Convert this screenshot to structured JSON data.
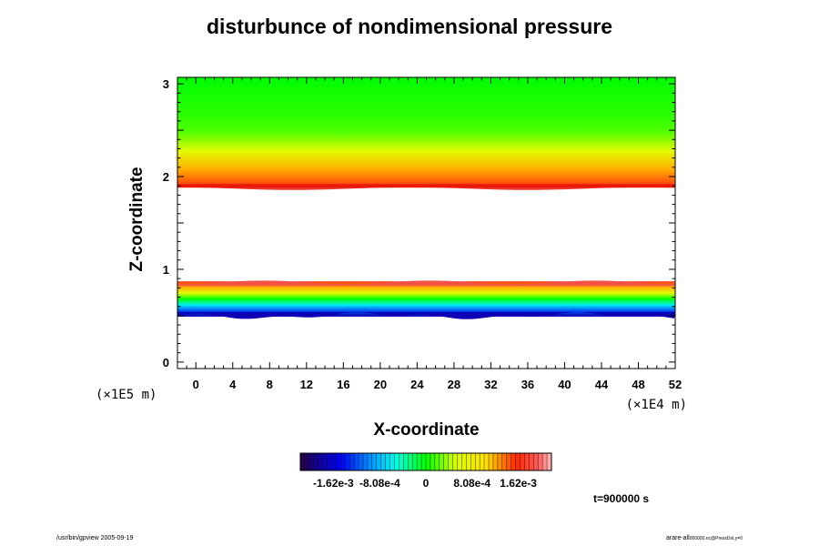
{
  "chart_data": {
    "type": "heatmap",
    "title": "disturbunce of nondimensional pressure",
    "xlabel": "X-coordinate",
    "ylabel": "Z-coordinate",
    "x_unit": "(×1E4 m)",
    "y_unit": "(×1E5 m)",
    "xlim": [
      -2,
      52
    ],
    "ylim": [
      -0.07,
      3.07
    ],
    "x_ticks": [
      0,
      4,
      8,
      12,
      16,
      20,
      24,
      28,
      32,
      36,
      40,
      44,
      48,
      52
    ],
    "x_tick_labels": [
      "0",
      "4",
      "8",
      "12",
      "16",
      "20",
      "24",
      "28",
      "32",
      "36",
      "40",
      "44",
      "48",
      "52"
    ],
    "y_ticks": [
      0,
      1,
      2,
      3
    ],
    "y_tick_labels": [
      "0",
      "1",
      "2",
      "3"
    ],
    "colorbar": {
      "min": -0.0022,
      "max": 0.0022,
      "ticks": [
        -0.00162,
        -0.000808,
        0,
        0.000808,
        0.00162
      ],
      "tick_labels": [
        "-1.62e-3",
        "-8.08e-4",
        "0",
        "8.08e-4",
        "1.62e-3"
      ]
    },
    "bands": [
      {
        "name": "upper band",
        "z_range": [
          1.88,
          3.07
        ],
        "values_bottom_to_top": [
          0.00165,
          0.0012,
          0.0006,
          0.0002,
          0.0001,
          5e-05,
          0.0
        ]
      },
      {
        "name": "lower band",
        "z_range": [
          0.49,
          0.87
        ],
        "values_bottom_to_top": [
          -0.0018,
          -0.0012,
          -0.0006,
          0.0,
          0.0006,
          0.0012,
          0.00165
        ]
      }
    ],
    "time_label": "t=900000 s"
  },
  "footer": {
    "left": "/usr/bin/gpview 2005-09-19",
    "right": "arare-all",
    "right_small": "000000.nc@PressDst,y=0"
  }
}
